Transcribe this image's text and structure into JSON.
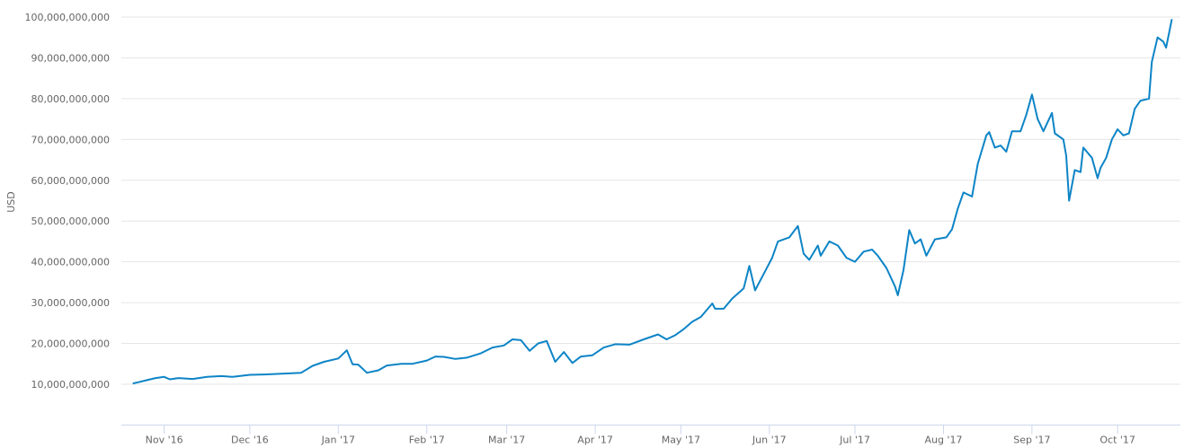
{
  "chart_data": {
    "type": "line",
    "y_label": "USD",
    "ylim": [
      0,
      100000000000
    ],
    "yticks": [
      {
        "value": 10000000000,
        "label": "10,000,000,000"
      },
      {
        "value": 20000000000,
        "label": "20,000,000,000"
      },
      {
        "value": 30000000000,
        "label": "30,000,000,000"
      },
      {
        "value": 40000000000,
        "label": "40,000,000,000"
      },
      {
        "value": 50000000000,
        "label": "50,000,000,000"
      },
      {
        "value": 60000000000,
        "label": "60,000,000,000"
      },
      {
        "value": 70000000000,
        "label": "70,000,000,000"
      },
      {
        "value": 80000000000,
        "label": "80,000,000,000"
      },
      {
        "value": 90000000000,
        "label": "90,000,000,000"
      },
      {
        "value": 100000000000,
        "label": "100,000,000,000"
      }
    ],
    "xlim": [
      16,
      387
    ],
    "xticks": [
      {
        "value": 31,
        "label": "Nov '16"
      },
      {
        "value": 61,
        "label": "Dec '16"
      },
      {
        "value": 92,
        "label": "Jan '17"
      },
      {
        "value": 123,
        "label": "Feb '17"
      },
      {
        "value": 151,
        "label": "Mar '17"
      },
      {
        "value": 182,
        "label": "Apr '17"
      },
      {
        "value": 212,
        "label": "May '17"
      },
      {
        "value": 243,
        "label": "Jun '17"
      },
      {
        "value": 273,
        "label": "Jul '17"
      },
      {
        "value": 304,
        "label": "Aug '17"
      },
      {
        "value": 335,
        "label": "Sep '17"
      },
      {
        "value": 365,
        "label": "Oct '17"
      }
    ],
    "grid": true,
    "color": "#0d84c6",
    "x": [
      20,
      22,
      25,
      28,
      31,
      33,
      36,
      41,
      46,
      51,
      55,
      61,
      66,
      73,
      79,
      83,
      87,
      92,
      95,
      97,
      99,
      102,
      106,
      109,
      114,
      118,
      123,
      126,
      129,
      133,
      137,
      142,
      146,
      150,
      153,
      156,
      159,
      162,
      165,
      168,
      171,
      174,
      177,
      181,
      185,
      189,
      194,
      199,
      204,
      207,
      210,
      213,
      216,
      219,
      223,
      224,
      227,
      230,
      234,
      236,
      238,
      241,
      244,
      246,
      250,
      253,
      255,
      257,
      260,
      261,
      264,
      267,
      270,
      273,
      276,
      279,
      281,
      284,
      287,
      288,
      290,
      292,
      294,
      296,
      298,
      301,
      305,
      307,
      309,
      311,
      314,
      316,
      319,
      320,
      322,
      324,
      326,
      328,
      331,
      333,
      335,
      337,
      339,
      342,
      343,
      346,
      347,
      348,
      350,
      352,
      353,
      356,
      358,
      359,
      361,
      363,
      365,
      367,
      369,
      371,
      373,
      376,
      377,
      379,
      381,
      382,
      384
    ],
    "values": [
      10200000000,
      10500000000,
      11000000000,
      11500000000,
      11800000000,
      11200000000,
      11500000000,
      11300000000,
      11800000000,
      12000000000,
      11800000000,
      12300000000,
      12400000000,
      12600000000,
      12800000000,
      14500000000,
      15500000000,
      16300000000,
      18300000000,
      14900000000,
      14800000000,
      12800000000,
      13400000000,
      14600000000,
      15000000000,
      15000000000,
      15800000000,
      16800000000,
      16700000000,
      16200000000,
      16500000000,
      17600000000,
      19000000000,
      19500000000,
      21000000000,
      20800000000,
      18200000000,
      20000000000,
      20600000000,
      15500000000,
      17900000000,
      15200000000,
      16800000000,
      17100000000,
      19000000000,
      19800000000,
      19700000000,
      21000000000,
      22200000000,
      21000000000,
      22000000000,
      23500000000,
      25300000000,
      26500000000,
      29800000000,
      28500000000,
      28500000000,
      31000000000,
      33500000000,
      39000000000,
      33000000000,
      37000000000,
      41000000000,
      45000000000,
      46000000000,
      48800000000,
      42000000000,
      40500000000,
      44000000000,
      41500000000,
      45000000000,
      44000000000,
      41000000000,
      40000000000,
      42500000000,
      43000000000,
      41500000000,
      38500000000,
      34000000000,
      31800000000,
      38000000000,
      47800000000,
      44500000000,
      45500000000,
      41500000000,
      45500000000,
      46000000000,
      48000000000,
      53000000000,
      57000000000,
      56000000000,
      64000000000,
      71000000000,
      71800000000,
      68000000000,
      68500000000,
      67000000000,
      72000000000,
      72000000000,
      76000000000,
      81000000000,
      75000000000,
      72000000000,
      76500000000,
      71500000000,
      70000000000,
      66000000000,
      55000000000,
      62500000000,
      62000000000,
      68000000000,
      65500000000,
      60500000000,
      63000000000,
      65500000000,
      70000000000,
      72500000000,
      71000000000,
      71500000000,
      77500000000,
      79500000000,
      80000000000,
      89000000000,
      95000000000,
      94000000000,
      92500000000,
      99500000000
    ]
  }
}
